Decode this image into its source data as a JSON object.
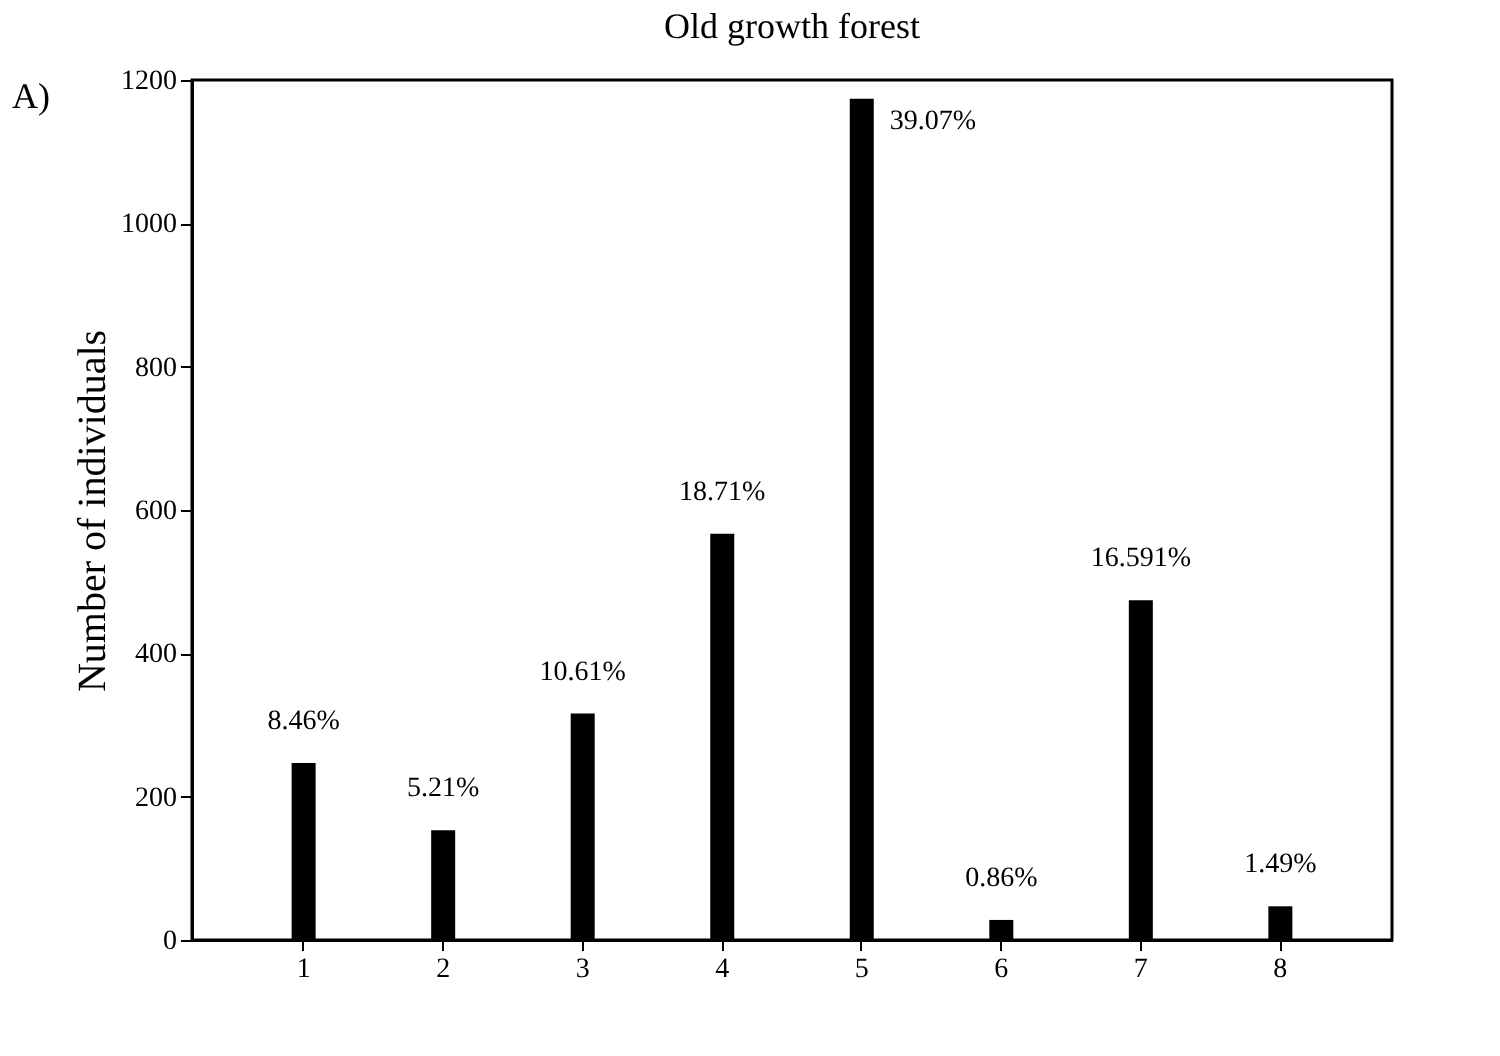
{
  "chart_data": {
    "type": "bar",
    "title": "Old growth forest",
    "ylabel": "Number of individuals",
    "categories": [
      "1",
      "2",
      "3",
      "4",
      "5",
      "6",
      "7",
      "8"
    ],
    "values": [
      247,
      153,
      316,
      567,
      1174,
      28,
      474,
      47
    ],
    "color": "#000000",
    "ylim": [
      0,
      1200
    ],
    "yticks": [
      0,
      200,
      400,
      600,
      800,
      1000,
      1200
    ],
    "grid": false,
    "annotations": [
      "A)",
      {
        "text": "8.46%",
        "x": "1",
        "y": 247
      },
      {
        "text": "5.21%",
        "x": "2",
        "y": 153
      },
      {
        "text": "10.61%",
        "x": "3",
        "y": 316
      },
      {
        "text": "18.71%",
        "x": "4",
        "y": 567
      },
      {
        "text": "39.07%",
        "x": "5",
        "y": 1174
      },
      {
        "text": "0.86%",
        "x": "6",
        "y": 28
      },
      {
        "text": "16.591%",
        "x": "7",
        "y": 474
      },
      {
        "text": "1.49%",
        "x": "8",
        "y": 47
      }
    ]
  }
}
